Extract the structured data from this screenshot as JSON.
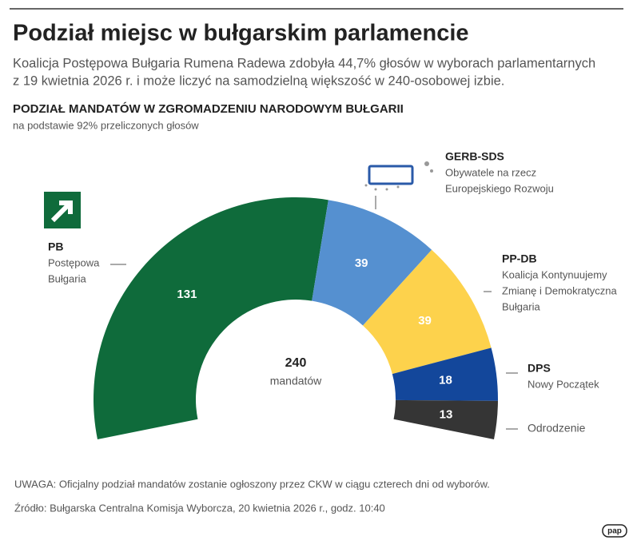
{
  "header": {
    "title": "Podział miejsc w bułgarskim parlamencie",
    "subtitle": [
      "Koalicja Postępowa Bułgaria Rumena Radewa zdobyła 44,7% głosów w wyborach parlamentarnych",
      "z 19 kwietnia 2026 r. i może liczyć na samodzielną większość w 240-osobowej izbie."
    ]
  },
  "chart_data": {
    "type": "semi-donut",
    "title": "PODZIAŁ MANDATÓW W ZGROMADZENIU NARODOWYM BUŁGARII",
    "subtitle": "na podstawie 92% przeliczonych głosów",
    "categories": [
      "PB",
      "GERB-SDS",
      "PP-DB",
      "DPS",
      "Odrodzenie"
    ],
    "descriptions": [
      [
        "Postępowa",
        "Bułgaria"
      ],
      [
        "Obywatele na rzecz",
        "Europejskiego Rozwoju"
      ],
      [
        "Koalicja Kontynuujemy",
        "Zmianę i Demokratyczna",
        "Bułgaria"
      ],
      [
        "Nowy Początek"
      ],
      []
    ],
    "values": [
      131,
      39,
      39,
      18,
      13
    ],
    "colors": [
      "#0f6b3b",
      "#5590d0",
      "#fdd24c",
      "#13479b",
      "#353535"
    ],
    "total": 240,
    "total_label": "mandatów"
  },
  "notes": {
    "note": "UWAGA: Oficjalny podział mandatów zostanie ogłoszony przez CKW w ciągu czterech dni od wyborów.",
    "source": "Źródło: Bułgarska Centralna Komisja Wyborcza, 20 kwietnia 2026 r., godz. 10:40",
    "brand": "pap"
  }
}
